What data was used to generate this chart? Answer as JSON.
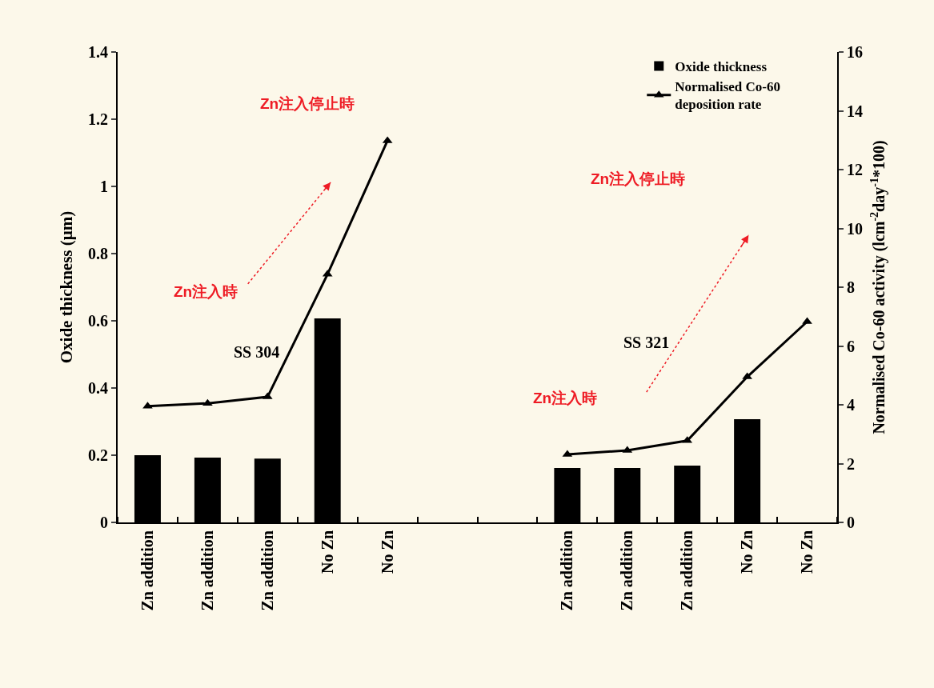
{
  "chart_data": {
    "type": "bar",
    "categories": [
      "Zn addition",
      "Zn addition",
      "Zn addition",
      "No Zn",
      "No Zn",
      null,
      null,
      "Zn addition",
      "Zn addition",
      "Zn addition",
      "No Zn",
      "No Zn"
    ],
    "series": [
      {
        "name": "Oxide thickness",
        "color": "#000000",
        "values": [
          0.2,
          0.193,
          0.19,
          0.607,
          null,
          null,
          null,
          0.162,
          0.162,
          0.169,
          0.307,
          null
        ]
      },
      {
        "name": "Normalised Co-60 deposition rate",
        "type": "line",
        "axis": "y2",
        "color": "#000000",
        "marker": "triangle",
        "values": [
          3.95,
          4.05,
          4.27,
          8.44,
          12.98,
          null,
          null,
          2.31,
          2.45,
          2.78,
          4.95,
          6.83
        ]
      }
    ],
    "ylabel": "Oxide thickness (µm)",
    "y2label": "Normalised Co-60 activity (lcm$^{-2}$day$^{-1}$*100)",
    "ylim": [
      0,
      1.4
    ],
    "yticks": [
      0,
      0.2,
      0.4,
      0.6,
      0.8,
      1,
      1.2,
      1.4
    ],
    "y2lim": [
      0,
      16
    ],
    "y2ticks": [
      0,
      2,
      4,
      6,
      8,
      10,
      12,
      14,
      16
    ],
    "annotations": [
      "SS 304",
      "SS 321",
      "Zn注入停止時",
      "Zn注入時",
      "Zn注入停止時",
      "Zn注入時"
    ],
    "legend": "top right",
    "grid": false
  }
}
